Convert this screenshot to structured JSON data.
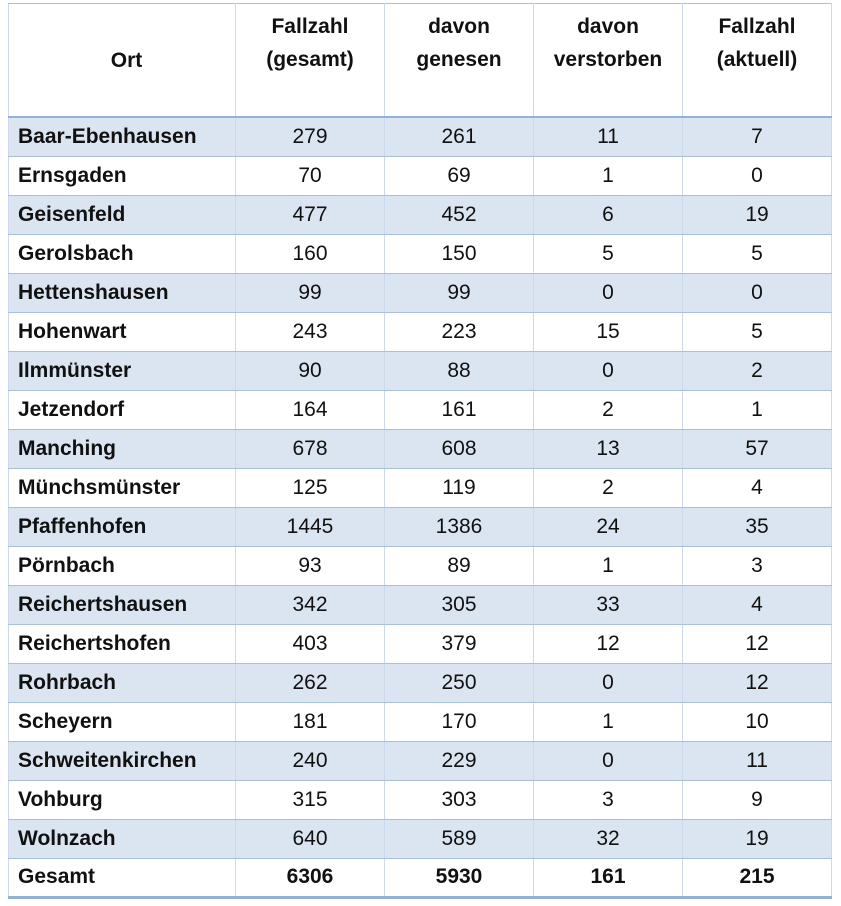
{
  "table": {
    "columns": [
      {
        "key": "ort",
        "lines": [
          "Ort"
        ]
      },
      {
        "key": "fallzahl-gesamt",
        "lines": [
          "Fallzahl",
          "(gesamt)"
        ]
      },
      {
        "key": "davon-genesen",
        "lines": [
          "davon",
          "genesen"
        ]
      },
      {
        "key": "davon-verstorben",
        "lines": [
          "davon",
          "verstorben"
        ]
      },
      {
        "key": "fallzahl-aktuell",
        "lines": [
          "Fallzahl",
          "(aktuell)"
        ]
      }
    ],
    "rows": [
      {
        "ort": "Baar-Ebenhausen",
        "values": [
          "279",
          "261",
          "11",
          "7"
        ]
      },
      {
        "ort": "Ernsgaden",
        "values": [
          "70",
          "69",
          "1",
          "0"
        ]
      },
      {
        "ort": "Geisenfeld",
        "values": [
          "477",
          "452",
          "6",
          "19"
        ]
      },
      {
        "ort": "Gerolsbach",
        "values": [
          "160",
          "150",
          "5",
          "5"
        ]
      },
      {
        "ort": "Hettenshausen",
        "values": [
          "99",
          "99",
          "0",
          "0"
        ]
      },
      {
        "ort": "Hohenwart",
        "values": [
          "243",
          "223",
          "15",
          "5"
        ]
      },
      {
        "ort": "Ilmmünster",
        "values": [
          "90",
          "88",
          "0",
          "2"
        ]
      },
      {
        "ort": "Jetzendorf",
        "values": [
          "164",
          "161",
          "2",
          "1"
        ]
      },
      {
        "ort": "Manching",
        "values": [
          "678",
          "608",
          "13",
          "57"
        ]
      },
      {
        "ort": "Münchsmünster",
        "values": [
          "125",
          "119",
          "2",
          "4"
        ]
      },
      {
        "ort": "Pfaffenhofen",
        "values": [
          "1445",
          "1386",
          "24",
          "35"
        ]
      },
      {
        "ort": "Pörnbach",
        "values": [
          "93",
          "89",
          "1",
          "3"
        ]
      },
      {
        "ort": "Reichertshausen",
        "values": [
          "342",
          "305",
          "33",
          "4"
        ]
      },
      {
        "ort": "Reichertshofen",
        "values": [
          "403",
          "379",
          "12",
          "12"
        ]
      },
      {
        "ort": "Rohrbach",
        "values": [
          "262",
          "250",
          "0",
          "12"
        ]
      },
      {
        "ort": "Scheyern",
        "values": [
          "181",
          "170",
          "1",
          "10"
        ]
      },
      {
        "ort": "Schweitenkirchen",
        "values": [
          "240",
          "229",
          "0",
          "11"
        ]
      },
      {
        "ort": "Vohburg",
        "values": [
          "315",
          "303",
          "3",
          "9"
        ]
      },
      {
        "ort": "Wolnzach",
        "values": [
          "640",
          "589",
          "32",
          "19"
        ]
      },
      {
        "ort": "Gesamt",
        "values": [
          "6306",
          "5930",
          "161",
          "215"
        ],
        "total": true
      }
    ],
    "colors": {
      "band_row_background": "#dbe5f1",
      "row_separator": "#a9c0dd",
      "column_separator": "#ccd9eb",
      "strong_border": "#93b2d7",
      "text": "#111111"
    }
  }
}
